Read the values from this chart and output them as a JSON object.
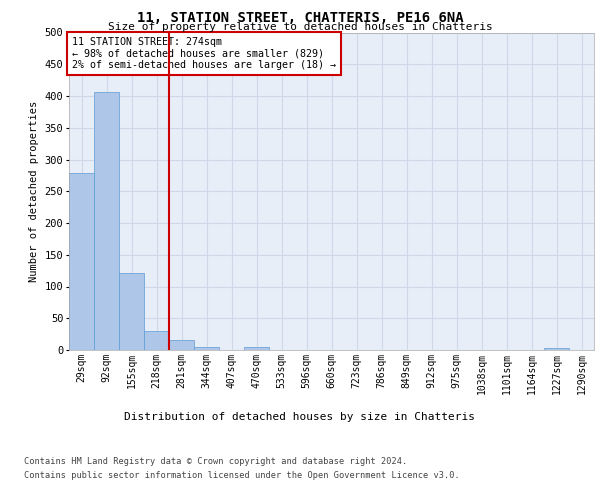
{
  "title": "11, STATION STREET, CHATTERIS, PE16 6NA",
  "subtitle": "Size of property relative to detached houses in Chatteris",
  "xlabel": "Distribution of detached houses by size in Chatteris",
  "ylabel": "Number of detached properties",
  "bar_labels": [
    "29sqm",
    "92sqm",
    "155sqm",
    "218sqm",
    "281sqm",
    "344sqm",
    "407sqm",
    "470sqm",
    "533sqm",
    "596sqm",
    "660sqm",
    "723sqm",
    "786sqm",
    "849sqm",
    "912sqm",
    "975sqm",
    "1038sqm",
    "1101sqm",
    "1164sqm",
    "1227sqm",
    "1290sqm"
  ],
  "bar_values": [
    278,
    407,
    122,
    30,
    15,
    5,
    0,
    4,
    0,
    0,
    0,
    0,
    0,
    0,
    0,
    0,
    0,
    0,
    0,
    3,
    0
  ],
  "bar_color": "#aec6e8",
  "bar_edge_color": "#5b9bd5",
  "property_sqm": 274,
  "annotation_text": "11 STATION STREET: 274sqm\n← 98% of detached houses are smaller (829)\n2% of semi-detached houses are larger (18) →",
  "annotation_box_color": "#ffffff",
  "annotation_box_edge_color": "#cc0000",
  "vline_color": "#cc0000",
  "grid_color": "#d0d8e8",
  "background_color": "#e8eef8",
  "ylim": [
    0,
    500
  ],
  "yticks": [
    0,
    50,
    100,
    150,
    200,
    250,
    300,
    350,
    400,
    450,
    500
  ],
  "footer_line1": "Contains HM Land Registry data © Crown copyright and database right 2024.",
  "footer_line2": "Contains public sector information licensed under the Open Government Licence v3.0."
}
